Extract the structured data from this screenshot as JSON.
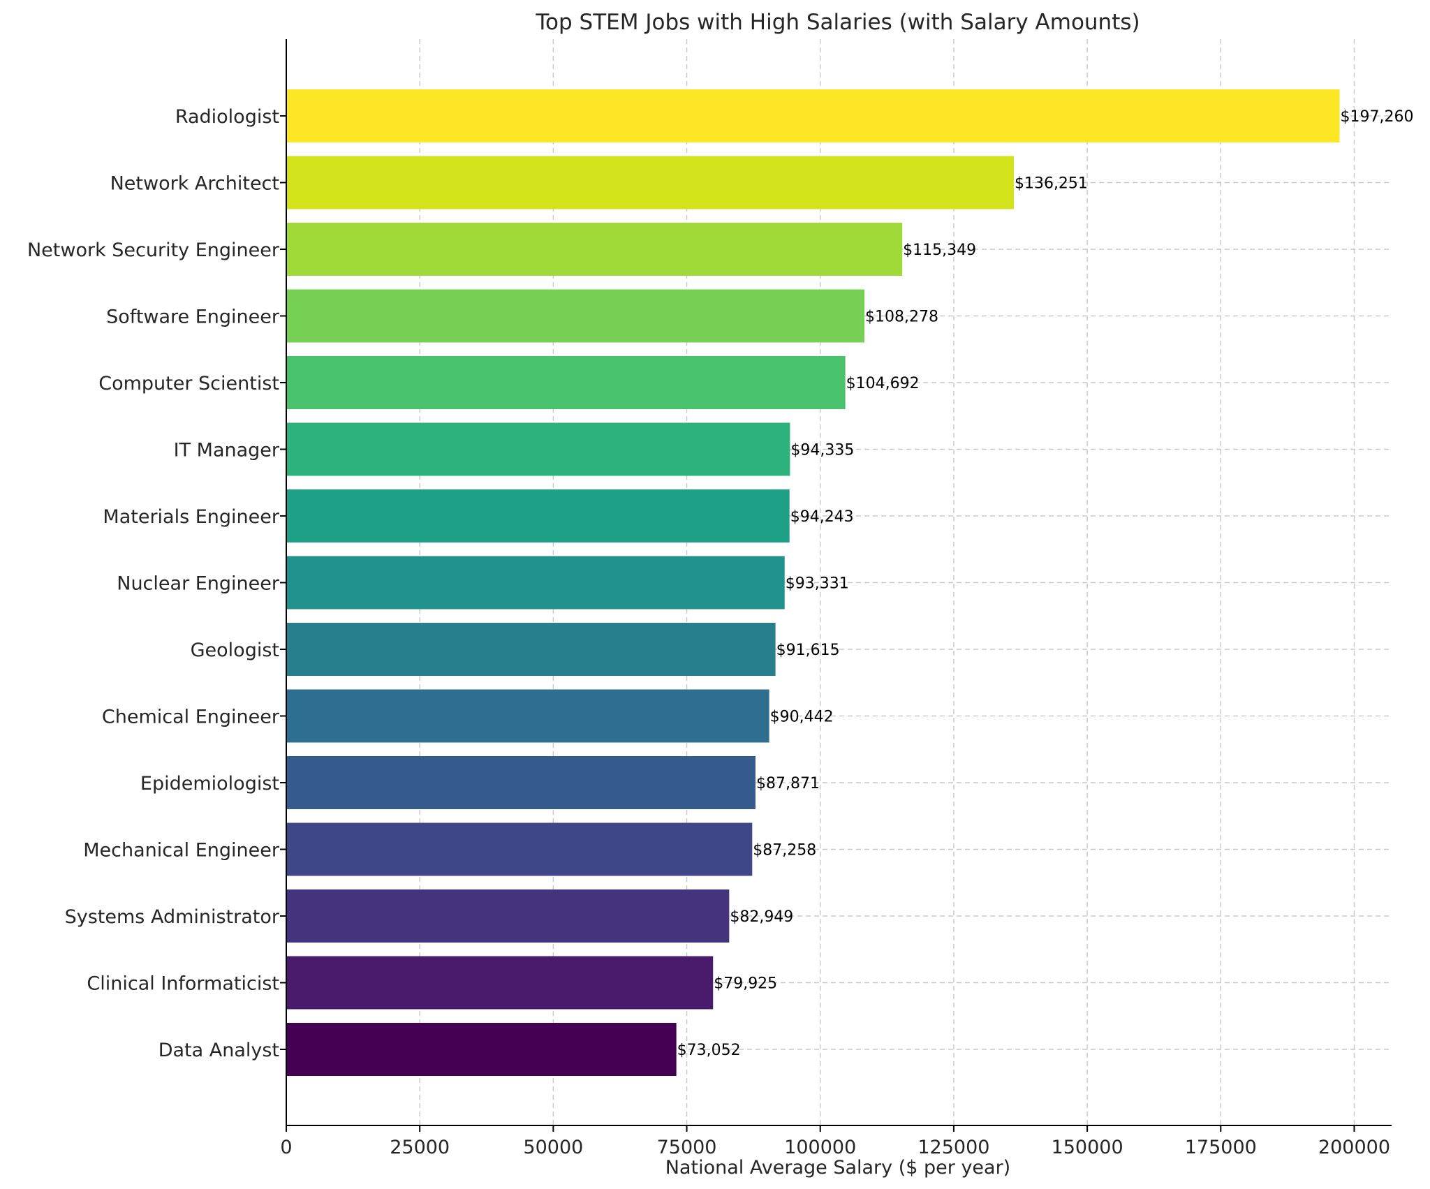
{
  "chart_data": {
    "type": "bar",
    "orientation": "horizontal",
    "title": "Top STEM Jobs with High Salaries (with Salary Amounts)",
    "xlabel": "National Average Salary ($ per year)",
    "ylabel": "",
    "xlim": [
      0,
      207000
    ],
    "xticks": [
      0,
      25000,
      50000,
      75000,
      100000,
      125000,
      150000,
      175000,
      200000
    ],
    "xtick_labels": [
      "0",
      "25000",
      "50000",
      "75000",
      "100000",
      "125000",
      "150000",
      "175000",
      "200000"
    ],
    "grid": true,
    "categories": [
      "Radiologist",
      "Network Architect",
      "Network Security Engineer",
      "Software Engineer",
      "Computer Scientist",
      "IT Manager",
      "Materials Engineer",
      "Nuclear Engineer",
      "Geologist",
      "Chemical Engineer",
      "Epidemiologist",
      "Mechanical Engineer",
      "Systems Administrator",
      "Clinical Informaticist",
      "Data Analyst"
    ],
    "values": [
      197260,
      136251,
      115349,
      108278,
      104692,
      94335,
      94243,
      93331,
      91615,
      90442,
      87871,
      87258,
      82949,
      79925,
      73052
    ],
    "value_labels": [
      "$197,260",
      "$136,251",
      "$115,349",
      "$108,278",
      "$104,692",
      "$94,335",
      "$94,243",
      "$93,331",
      "$91,615",
      "$90,442",
      "$87,871",
      "$87,258",
      "$82,949",
      "$79,925",
      "$73,052"
    ],
    "colors": [
      "#fde725",
      "#d2e21b",
      "#a0da39",
      "#75d054",
      "#4ac16d",
      "#2db27d",
      "#1fa187",
      "#21918c",
      "#277f8e",
      "#2e6e8e",
      "#365c8d",
      "#3f4788",
      "#46337e",
      "#481b6d",
      "#440154"
    ]
  }
}
